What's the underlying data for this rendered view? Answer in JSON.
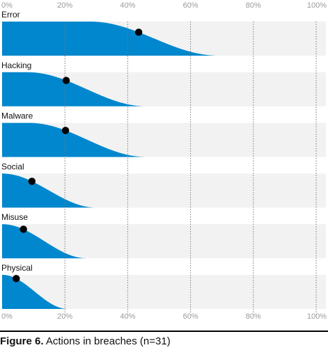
{
  "chart_data": {
    "type": "area",
    "title": "",
    "xlabel": "",
    "ylabel": "",
    "x_ticks": [
      "0%",
      "20%",
      "40%",
      "60%",
      "80%",
      "100%"
    ],
    "xlim": [
      0,
      100
    ],
    "grid": true,
    "colors": {
      "fill": "#0087cd",
      "point": "#000000",
      "track": "#f2f2f2",
      "grid": "#7a7a7a",
      "axis": "#000000"
    },
    "series": [
      {
        "name": "Error",
        "point": 43.5,
        "flat_until": 28,
        "reach": 69
      },
      {
        "name": "Hacking",
        "point": 20.4,
        "flat_until": 8,
        "reach": 46
      },
      {
        "name": "Malware",
        "point": 20.2,
        "flat_until": 8.5,
        "reach": 46
      },
      {
        "name": "Social",
        "point": 9.5,
        "flat_until": 0,
        "reach": 30
      },
      {
        "name": "Misuse",
        "point": 6.8,
        "flat_until": 0,
        "reach": 27
      },
      {
        "name": "Physical",
        "point": 4.5,
        "flat_until": 0,
        "reach": 21
      }
    ]
  },
  "caption": {
    "label": "Figure 6.",
    "text": " Actions in breaches (n=31)"
  }
}
